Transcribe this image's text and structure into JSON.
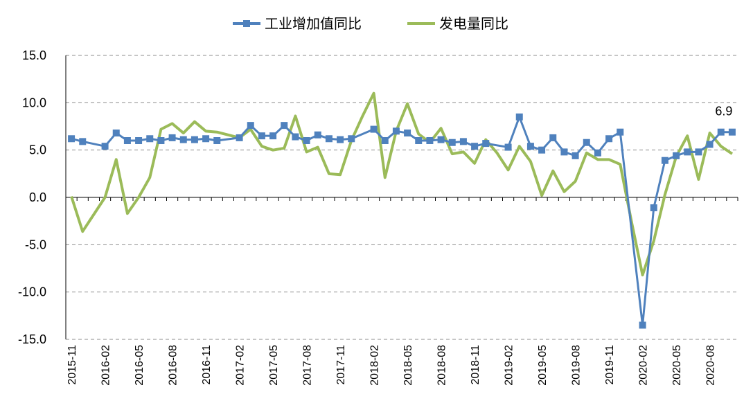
{
  "chart_data": {
    "type": "line",
    "title": "",
    "xlabel": "",
    "ylabel": "",
    "ylim": [
      -15,
      15
    ],
    "ytick_labels": [
      "15.0",
      "10.0",
      "5.0",
      "0.0",
      "-5.0",
      "-10.0",
      "-15.0"
    ],
    "grid": true,
    "legend_placement": "top",
    "x": [
      "2015-11",
      "2015-12",
      "2016-01",
      "2016-02",
      "2016-03",
      "2016-04",
      "2016-05",
      "2016-06",
      "2016-07",
      "2016-08",
      "2016-09",
      "2016-10",
      "2016-11",
      "2016-12",
      "2017-01",
      "2017-02",
      "2017-03",
      "2017-04",
      "2017-05",
      "2017-06",
      "2017-07",
      "2017-08",
      "2017-09",
      "2017-10",
      "2017-11",
      "2017-12",
      "2018-01",
      "2018-02",
      "2018-03",
      "2018-04",
      "2018-05",
      "2018-06",
      "2018-07",
      "2018-08",
      "2018-09",
      "2018-10",
      "2018-11",
      "2018-12",
      "2019-01",
      "2019-02",
      "2019-03",
      "2019-04",
      "2019-05",
      "2019-06",
      "2019-07",
      "2019-08",
      "2019-09",
      "2019-10",
      "2019-11",
      "2019-12",
      "2020-01",
      "2020-02",
      "2020-03",
      "2020-04",
      "2020-05",
      "2020-06",
      "2020-07",
      "2020-08",
      "2020-09",
      "2020-10"
    ],
    "xtick_labels": [
      "2015-11",
      "2016-02",
      "2016-05",
      "2016-08",
      "2016-11",
      "2017-02",
      "2017-05",
      "2017-08",
      "2017-11",
      "2018-02",
      "2018-05",
      "2018-08",
      "2018-11",
      "2019-02",
      "2019-05",
      "2019-08",
      "2019-11",
      "2020-02",
      "2020-05",
      "2020-08"
    ],
    "series": [
      {
        "name": "工业增加值同比",
        "color": "#4f81bd",
        "marker": "square",
        "values": [
          6.2,
          5.9,
          null,
          5.4,
          6.8,
          6.0,
          6.0,
          6.2,
          6.0,
          6.3,
          6.1,
          6.1,
          6.2,
          6.0,
          null,
          6.3,
          7.6,
          6.5,
          6.5,
          7.6,
          6.4,
          6.0,
          6.6,
          6.2,
          6.1,
          6.2,
          null,
          7.2,
          6.0,
          7.0,
          6.8,
          6.0,
          6.0,
          6.1,
          5.8,
          5.9,
          5.4,
          5.7,
          null,
          5.3,
          8.5,
          5.4,
          5.0,
          6.3,
          4.8,
          4.4,
          5.8,
          4.7,
          6.2,
          6.9,
          null,
          -13.5,
          -1.1,
          3.9,
          4.4,
          4.8,
          4.8,
          5.6,
          6.9,
          6.9
        ]
      },
      {
        "name": "发电量同比",
        "color": "#9bbb59",
        "marker": "none",
        "values": [
          0.1,
          -3.6,
          -1.8,
          0.0,
          4.0,
          -1.7,
          0.0,
          2.1,
          7.2,
          7.8,
          6.8,
          8.0,
          7.0,
          6.9,
          6.6,
          6.3,
          7.2,
          5.4,
          5.0,
          5.2,
          8.6,
          4.8,
          5.3,
          2.5,
          2.4,
          6.0,
          8.6,
          11.0,
          2.1,
          7.0,
          9.9,
          6.7,
          5.8,
          7.3,
          4.6,
          4.8,
          3.6,
          6.1,
          4.7,
          2.9,
          5.4,
          3.8,
          0.2,
          2.8,
          0.6,
          1.7,
          4.7,
          4.0,
          4.0,
          3.5,
          -2.5,
          -8.2,
          -4.6,
          0.3,
          4.3,
          6.5,
          1.9,
          6.8,
          5.4,
          4.6
        ]
      }
    ],
    "annotations": [
      {
        "text": "6.9"
      }
    ]
  }
}
